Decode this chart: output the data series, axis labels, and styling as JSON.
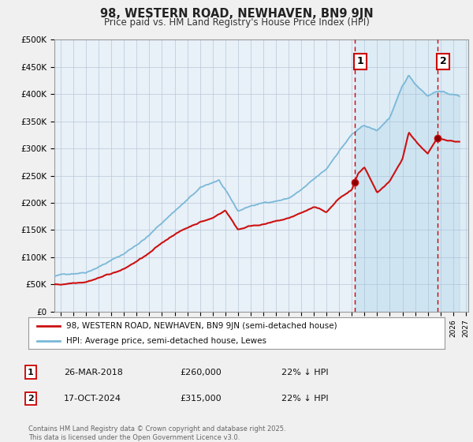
{
  "title": "98, WESTERN ROAD, NEWHAVEN, BN9 9JN",
  "subtitle": "Price paid vs. HM Land Registry's House Price Index (HPI)",
  "ylabel_ticks": [
    "£0",
    "£50K",
    "£100K",
    "£150K",
    "£200K",
    "£250K",
    "£300K",
    "£350K",
    "£400K",
    "£450K",
    "£500K"
  ],
  "ylim": [
    0,
    500000
  ],
  "xlim_start": 1994.5,
  "xlim_end": 2027.2,
  "sale1_date": 2018.23,
  "sale1_price": 260000,
  "sale1_label": "1",
  "sale2_date": 2024.79,
  "sale2_price": 315000,
  "sale2_label": "2",
  "hpi_color": "#7ab8d8",
  "hpi_fill_color": "#d0e8f5",
  "price_color": "#cc1111",
  "legend_line1": "98, WESTERN ROAD, NEWHAVEN, BN9 9JN (semi-detached house)",
  "legend_line2": "HPI: Average price, semi-detached house, Lewes",
  "table_row1": [
    "1",
    "26-MAR-2018",
    "£260,000",
    "22% ↓ HPI"
  ],
  "table_row2": [
    "2",
    "17-OCT-2024",
    "£315,000",
    "22% ↓ HPI"
  ],
  "footer": "Contains HM Land Registry data © Crown copyright and database right 2025.\nThis data is licensed under the Open Government Licence v3.0.",
  "background_color": "#f0f0f0",
  "plot_bg_color": "#e8f0f8"
}
